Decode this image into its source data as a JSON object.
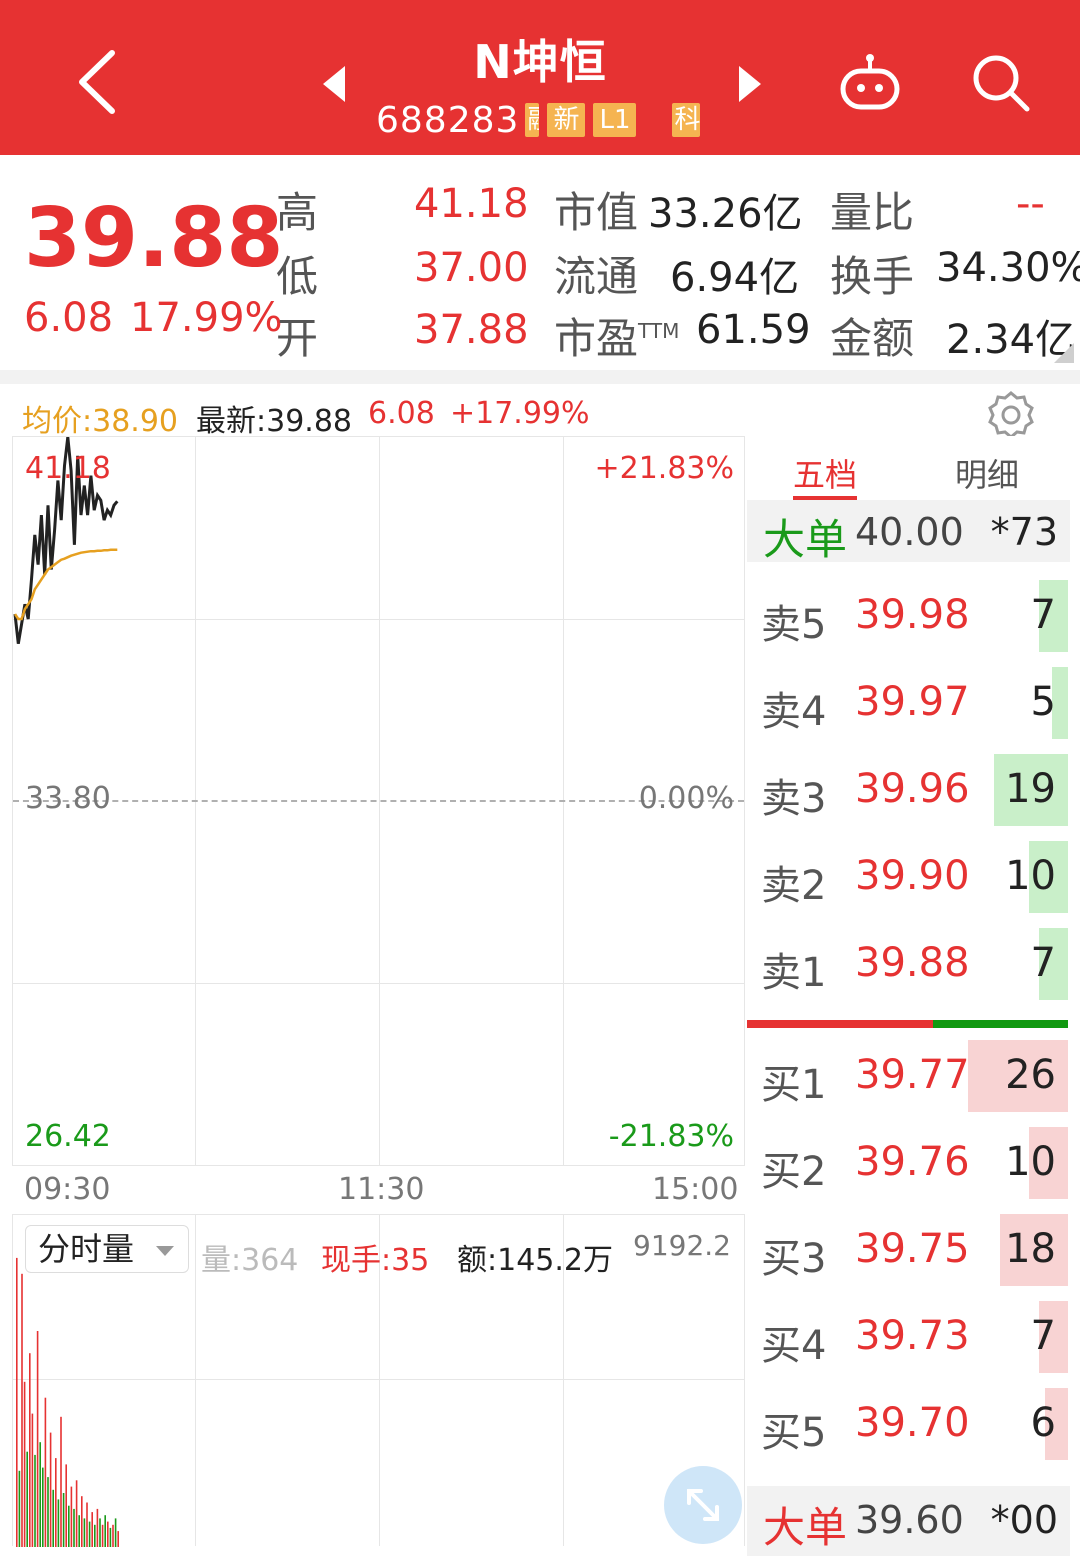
{
  "header": {
    "title": "N坤恒",
    "code": "688283",
    "tags": [
      "融",
      "新",
      "L1",
      "科"
    ],
    "colors": {
      "bg": "#e63232",
      "tag": "#f5b451"
    },
    "icons": [
      "back-arrow-icon",
      "prev-stock-icon",
      "next-stock-icon",
      "robot-icon",
      "search-icon"
    ]
  },
  "quote": {
    "price": "39.88",
    "change": "6.08",
    "change_pct": "17.99%",
    "high_label": "高",
    "high": "41.18",
    "low_label": "低",
    "low": "37.00",
    "open_label": "开",
    "open": "37.88",
    "mkt_cap_label": "市值",
    "mkt_cap": "33.26亿",
    "float_label": "流通",
    "float": "6.94亿",
    "pe_label": "市盈",
    "pe_sup": "TTM",
    "pe": "61.59",
    "vol_ratio_label": "量比",
    "vol_ratio": "--",
    "turnover_label": "换手",
    "turnover": "34.30%",
    "amount_label": "金额",
    "amount": "2.34亿"
  },
  "infobar": {
    "avg": "均价:38.90",
    "latest": "最新:39.88",
    "change": "6.08",
    "change_pct": "+17.99%"
  },
  "chart": {
    "y_top": "41.18",
    "y_mid": "33.80",
    "y_bottom": "26.42",
    "pct_top": "+21.83%",
    "pct_mid": "0.00%",
    "pct_bottom": "-21.83%",
    "times": [
      "09:30",
      "11:30",
      "15:00"
    ]
  },
  "chart_data": {
    "type": "line",
    "title": "",
    "xlabel": "",
    "ylabel": "",
    "ylim": [
      26.42,
      41.18
    ],
    "x_ticks": [
      "09:30",
      "11:30",
      "15:00"
    ],
    "series": [
      {
        "values": [
          37.6,
          37.0,
          37.4,
          37.8,
          37.5,
          38.3,
          39.2,
          38.6,
          39.6,
          38.4,
          39.8,
          38.5,
          39.3,
          40.3,
          39.5,
          40.6,
          41.18,
          40.5,
          39.0,
          40.8,
          39.6,
          40.2,
          39.6,
          40.4,
          39.7,
          40.0,
          39.9,
          39.5,
          39.7,
          39.6,
          39.8,
          39.88
        ]
      },
      {
        "values": [
          37.6,
          37.5,
          37.5,
          37.7,
          37.8,
          37.9,
          38.1,
          38.2,
          38.3,
          38.4,
          38.5,
          38.55,
          38.6,
          38.65,
          38.7,
          38.72,
          38.75,
          38.78,
          38.8,
          38.82,
          38.84,
          38.85,
          38.86,
          38.87,
          38.87,
          38.88,
          38.88,
          38.89,
          38.89,
          38.9,
          38.9,
          38.9
        ]
      }
    ]
  },
  "volume": {
    "select_label": "分时量",
    "vol": "量:364",
    "now_hand": "现手:35",
    "amount": "额:145.2万",
    "max": "9192.2"
  },
  "volume_data": {
    "values": [
      9100,
      2400,
      8600,
      5200,
      3000,
      6100,
      4200,
      2900,
      6800,
      3300,
      2500,
      4700,
      2200,
      3600,
      1800,
      2800,
      1500,
      4100,
      1700,
      2600,
      1300,
      1900,
      1200,
      2100,
      1000,
      1600,
      900,
      1400,
      800,
      1100,
      700,
      1200,
      900,
      700,
      1000,
      800,
      600,
      700,
      900,
      500
    ],
    "colors": [
      "red",
      "green",
      "red",
      "red",
      "green",
      "red",
      "red",
      "green",
      "red",
      "green",
      "green",
      "red",
      "green",
      "red",
      "green",
      "red",
      "green",
      "red",
      "green",
      "red",
      "green",
      "red",
      "green",
      "red",
      "green",
      "red",
      "green",
      "red",
      "green",
      "red",
      "green",
      "red",
      "green",
      "red",
      "green",
      "red",
      "green",
      "red",
      "green",
      "red"
    ]
  },
  "book": {
    "tab_five": "五档",
    "tab_detail": "明细",
    "big_sell": {
      "label": "大单",
      "price": "40.00",
      "vol": "*73"
    },
    "sells": [
      {
        "label": "卖5",
        "price": "39.98",
        "vol": "7",
        "bar": 0.09
      },
      {
        "label": "卖4",
        "price": "39.97",
        "vol": "5",
        "bar": 0.05
      },
      {
        "label": "卖3",
        "price": "39.96",
        "vol": "19",
        "bar": 0.23
      },
      {
        "label": "卖2",
        "price": "39.90",
        "vol": "10",
        "bar": 0.12
      },
      {
        "label": "卖1",
        "price": "39.88",
        "vol": "7",
        "bar": 0.09
      }
    ],
    "buys": [
      {
        "label": "买1",
        "price": "39.77",
        "vol": "26",
        "bar": 0.31
      },
      {
        "label": "买2",
        "price": "39.76",
        "vol": "10",
        "bar": 0.12
      },
      {
        "label": "买3",
        "price": "39.75",
        "vol": "18",
        "bar": 0.21
      },
      {
        "label": "买4",
        "price": "39.73",
        "vol": "7",
        "bar": 0.09
      },
      {
        "label": "买5",
        "price": "39.70",
        "vol": "6",
        "bar": 0.07
      }
    ],
    "big_buy": {
      "label": "大单",
      "price": "39.60",
      "vol": "*00"
    },
    "buy_sell_split": 0.58
  }
}
